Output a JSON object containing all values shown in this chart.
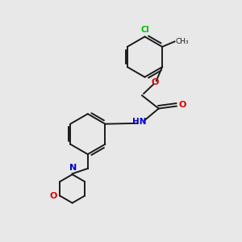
{
  "bg_color": "#e8e8e8",
  "bond_color": "#1a1a1a",
  "atom_colors": {
    "Cl": "#00bb00",
    "O": "#dd0000",
    "N": "#0000cc",
    "C": "#1a1a1a"
  },
  "figsize": [
    3.0,
    3.0
  ],
  "dpi": 100
}
